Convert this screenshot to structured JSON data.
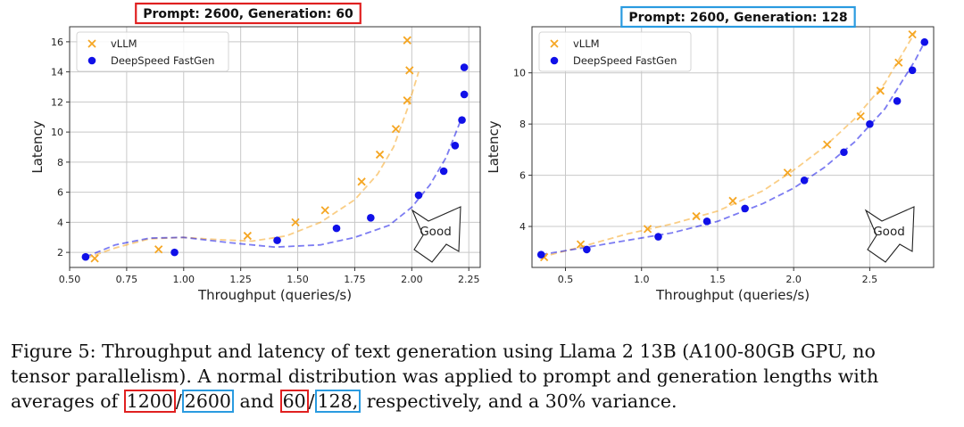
{
  "chart_data": [
    {
      "type": "scatter",
      "title": "Prompt: 2600, Generation: 60",
      "title_box_color": "#e02020",
      "xlabel": "Throughput (queries/s)",
      "ylabel": "Latency",
      "xlim": [
        0.5,
        2.3
      ],
      "ylim": [
        1,
        17
      ],
      "xticks": [
        0.5,
        0.75,
        1.0,
        1.25,
        1.5,
        1.75,
        2.0,
        2.25
      ],
      "xtick_labels": [
        "0.50",
        "0.75",
        "1.00",
        "1.25",
        "1.50",
        "1.75",
        "2.00",
        "2.25"
      ],
      "yticks": [
        2,
        4,
        6,
        8,
        10,
        12,
        14,
        16
      ],
      "ytick_labels": [
        "2",
        "4",
        "6",
        "8",
        "10",
        "12",
        "14",
        "16"
      ],
      "grid": true,
      "legend_position": "top-left",
      "annotation": "Good",
      "series": [
        {
          "name": "vLLM",
          "marker": "x",
          "color": "#f5a623",
          "points": [
            [
              0.61,
              1.6
            ],
            [
              0.89,
              2.2
            ],
            [
              1.28,
              3.1
            ],
            [
              1.49,
              4.0
            ],
            [
              1.62,
              4.8
            ],
            [
              1.78,
              6.7
            ],
            [
              1.86,
              8.5
            ],
            [
              1.93,
              10.2
            ],
            [
              1.98,
              12.1
            ],
            [
              1.99,
              14.1
            ],
            [
              1.98,
              16.1
            ]
          ],
          "fit": [
            [
              0.57,
              1.6
            ],
            [
              0.7,
              2.3
            ],
            [
              0.85,
              2.9
            ],
            [
              1.0,
              3.0
            ],
            [
              1.15,
              2.85
            ],
            [
              1.3,
              2.75
            ],
            [
              1.45,
              3.1
            ],
            [
              1.6,
              4.0
            ],
            [
              1.75,
              5.5
            ],
            [
              1.85,
              7.2
            ],
            [
              1.92,
              9.0
            ],
            [
              1.98,
              11.5
            ],
            [
              2.03,
              14.0
            ]
          ]
        },
        {
          "name": "DeepSpeed FastGen",
          "marker": "circle",
          "color": "#1010e8",
          "points": [
            [
              0.57,
              1.7
            ],
            [
              0.96,
              2.0
            ],
            [
              1.41,
              2.8
            ],
            [
              1.67,
              3.6
            ],
            [
              1.82,
              4.3
            ],
            [
              2.03,
              5.8
            ],
            [
              2.14,
              7.4
            ],
            [
              2.19,
              9.1
            ],
            [
              2.22,
              10.8
            ],
            [
              2.23,
              12.5
            ],
            [
              2.23,
              14.3
            ]
          ],
          "fit": [
            [
              0.57,
              1.7
            ],
            [
              0.7,
              2.5
            ],
            [
              0.85,
              2.95
            ],
            [
              1.0,
              3.0
            ],
            [
              1.2,
              2.65
            ],
            [
              1.4,
              2.35
            ],
            [
              1.6,
              2.5
            ],
            [
              1.75,
              3.0
            ],
            [
              1.9,
              3.8
            ],
            [
              2.0,
              5.0
            ],
            [
              2.08,
              6.5
            ],
            [
              2.15,
              8.3
            ],
            [
              2.22,
              11.0
            ]
          ]
        }
      ]
    },
    {
      "type": "scatter",
      "title": "Prompt: 2600, Generation: 128",
      "title_box_color": "#2a9be0",
      "xlabel": "Throughput (queries/s)",
      "ylabel": "Latency",
      "xlim": [
        0.28,
        2.92
      ],
      "ylim": [
        2.4,
        11.8
      ],
      "xticks": [
        0.5,
        1.0,
        1.5,
        2.0,
        2.5
      ],
      "xtick_labels": [
        "0.5",
        "1.0",
        "1.5",
        "2.0",
        "2.5"
      ],
      "yticks": [
        4,
        6,
        8,
        10
      ],
      "ytick_labels": [
        "4",
        "6",
        "8",
        "10"
      ],
      "grid": true,
      "legend_position": "top-left",
      "annotation": "Good",
      "series": [
        {
          "name": "vLLM",
          "marker": "x",
          "color": "#f5a623",
          "points": [
            [
              0.36,
              2.8
            ],
            [
              0.6,
              3.3
            ],
            [
              1.04,
              3.9
            ],
            [
              1.36,
              4.4
            ],
            [
              1.6,
              5.0
            ],
            [
              1.96,
              6.1
            ],
            [
              2.22,
              7.2
            ],
            [
              2.44,
              8.3
            ],
            [
              2.57,
              9.3
            ],
            [
              2.69,
              10.4
            ],
            [
              2.78,
              11.5
            ]
          ],
          "fit": [
            [
              0.34,
              2.8
            ],
            [
              0.6,
              3.2
            ],
            [
              0.9,
              3.7
            ],
            [
              1.2,
              4.1
            ],
            [
              1.5,
              4.6
            ],
            [
              1.8,
              5.4
            ],
            [
              2.0,
              6.2
            ],
            [
              2.2,
              7.1
            ],
            [
              2.4,
              8.2
            ],
            [
              2.6,
              9.6
            ],
            [
              2.8,
              11.6
            ]
          ]
        },
        {
          "name": "DeepSpeed FastGen",
          "marker": "circle",
          "color": "#1010e8",
          "points": [
            [
              0.34,
              2.9
            ],
            [
              0.64,
              3.1
            ],
            [
              1.11,
              3.6
            ],
            [
              1.43,
              4.2
            ],
            [
              1.68,
              4.7
            ],
            [
              2.07,
              5.8
            ],
            [
              2.33,
              6.9
            ],
            [
              2.5,
              8.0
            ],
            [
              2.68,
              8.9
            ],
            [
              2.78,
              10.1
            ],
            [
              2.86,
              11.2
            ]
          ],
          "fit": [
            [
              0.34,
              2.9
            ],
            [
              0.6,
              3.15
            ],
            [
              0.9,
              3.45
            ],
            [
              1.2,
              3.75
            ],
            [
              1.5,
              4.2
            ],
            [
              1.8,
              4.9
            ],
            [
              2.0,
              5.5
            ],
            [
              2.2,
              6.3
            ],
            [
              2.4,
              7.3
            ],
            [
              2.6,
              8.6
            ],
            [
              2.8,
              10.5
            ],
            [
              2.86,
              11.2
            ]
          ]
        }
      ]
    }
  ],
  "caption": {
    "line1": "Figure 5: Throughput and latency of text generation using Llama 2 13B (A100-80GB GPU, no",
    "line2": "tensor parallelism). A normal distribution was applied to prompt and generation lengths with",
    "line3_pre": "averages of ",
    "prompt_a": "1200",
    "slash1": "/",
    "prompt_b": "2600",
    "and_text": " and ",
    "gen_a": "60",
    "slash2": "/",
    "gen_b": "128,",
    "line3_post": " respectively, and a 30% variance."
  }
}
